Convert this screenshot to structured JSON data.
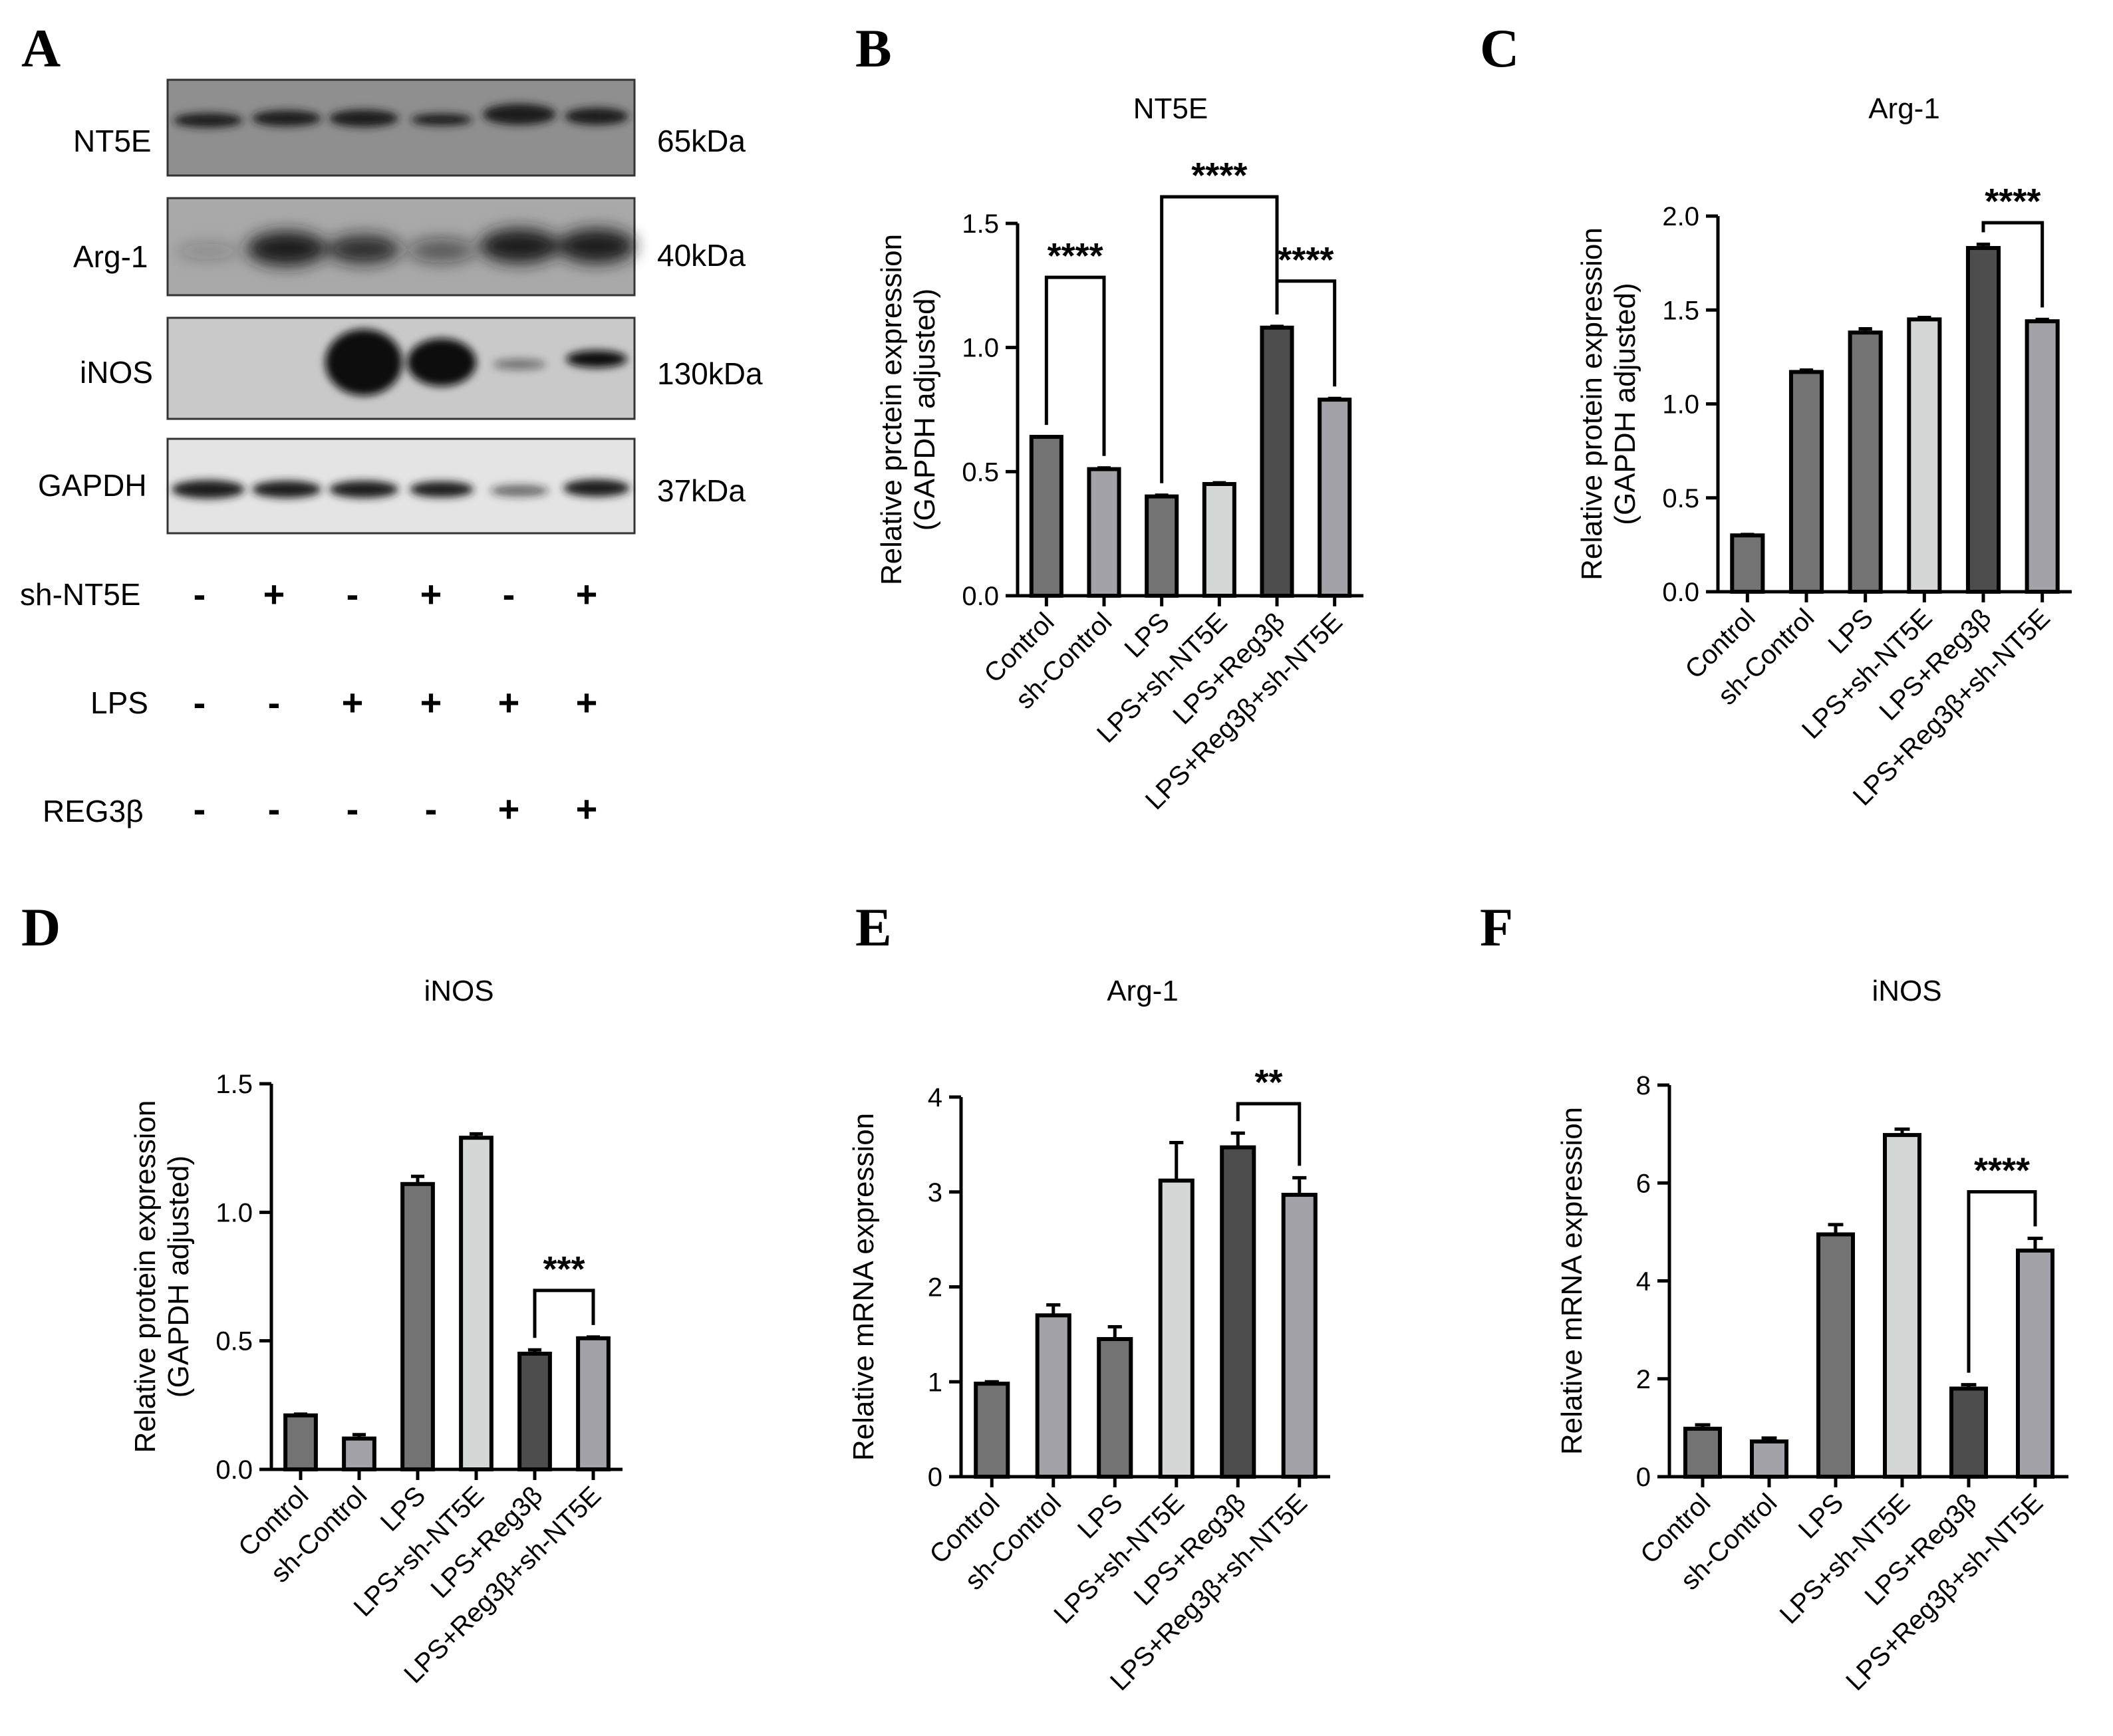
{
  "colors": {
    "dark": "#4d4d4d",
    "mid": "#737373",
    "light": "#d4d7d5",
    "grey": "#a2a2a8",
    "black": "#000000"
  },
  "western_blot": {
    "panel_letter": "A",
    "bands": [
      {
        "protein": "NT5E",
        "size": "65kDa"
      },
      {
        "protein": "Arg-1",
        "size": "40kDa"
      },
      {
        "protein": "iNOS",
        "size": "130kDa"
      },
      {
        "protein": "GAPDH",
        "size": "37kDa"
      }
    ],
    "treatments": [
      {
        "name": "sh-NT5E",
        "signs": [
          "-",
          "+",
          "-",
          "+",
          "-",
          "+"
        ]
      },
      {
        "name": "LPS",
        "signs": [
          "-",
          "-",
          "+",
          "+",
          "+",
          "+"
        ]
      },
      {
        "name": "REG3β",
        "signs": [
          "-",
          "-",
          "-",
          "-",
          "+",
          "+"
        ]
      }
    ]
  },
  "chart_data": [
    {
      "panel": "B",
      "type": "bar",
      "title": "NT5E",
      "ylabel": [
        "Relative prctein expression",
        "(GAPDH adjusted)"
      ],
      "ylim": [
        0,
        1.5
      ],
      "yticks": [
        "0.0",
        "0.5",
        "1.0",
        "1.5"
      ],
      "categories": [
        "Control",
        "sh-Control",
        "LPS",
        "LPS+sh-NT5E",
        "LPS+Reg3β",
        "LPS+Reg3β+sh-NT5E"
      ],
      "values": [
        0.64,
        0.51,
        0.4,
        0.45,
        1.08,
        0.79
      ],
      "errors": [
        0,
        0.005,
        0.005,
        0.005,
        0.005,
        0.005
      ],
      "colors": [
        "mid",
        "grey",
        "mid",
        "light",
        "dark",
        "grey"
      ],
      "significance": [
        {
          "from": 0,
          "to": 1,
          "label": "****"
        },
        {
          "from": 2,
          "to": 4,
          "label": "****"
        },
        {
          "from": 4,
          "to": 5,
          "label": "****"
        }
      ]
    },
    {
      "panel": "C",
      "type": "bar",
      "title": "Arg-1",
      "ylabel": [
        "Relative protein expression",
        "(GAPDH adjusted)"
      ],
      "ylim": [
        0,
        2.0
      ],
      "yticks": [
        "0.0",
        "0.5",
        "1.0",
        "1.5",
        "2.0"
      ],
      "categories": [
        "Control",
        "sh-Control",
        "LPS",
        "LPS+sh-NT5E",
        "LPS+Reg3β",
        "LPS+Reg3β+sh-NT5E"
      ],
      "values": [
        0.3,
        1.17,
        1.38,
        1.45,
        1.83,
        1.44
      ],
      "errors": [
        0.005,
        0.01,
        0.02,
        0.01,
        0.02,
        0.01
      ],
      "colors": [
        "mid",
        "mid",
        "mid",
        "light",
        "dark",
        "grey"
      ],
      "significance": [
        {
          "from": 4,
          "to": 5,
          "label": "****"
        }
      ]
    },
    {
      "panel": "D",
      "type": "bar",
      "title": "iNOS",
      "ylabel": [
        "Relative protein expression",
        "(GAPDH adjusted)"
      ],
      "ylim": [
        0,
        1.5
      ],
      "yticks": [
        "0.0",
        "0.5",
        "1.0",
        "1.5"
      ],
      "categories": [
        "Control",
        "sh-Control",
        "LPS",
        "LPS+sh-NT5E",
        "LPS+Reg3β",
        "LPS+Reg3β+sh-NT5E"
      ],
      "values": [
        0.21,
        0.12,
        1.11,
        1.29,
        0.45,
        0.51
      ],
      "errors": [
        0.005,
        0.015,
        0.03,
        0.015,
        0.015,
        0.005
      ],
      "colors": [
        "mid",
        "grey",
        "mid",
        "light",
        "dark",
        "grey"
      ],
      "significance": [
        {
          "from": 4,
          "to": 5,
          "label": "***"
        }
      ]
    },
    {
      "panel": "E",
      "type": "bar",
      "title": "Arg-1",
      "ylabel": [
        "Relative mRNA expression"
      ],
      "ylim": [
        0,
        4
      ],
      "yticks": [
        "0",
        "1",
        "2",
        "3",
        "4"
      ],
      "categories": [
        "Control",
        "sh-Control",
        "LPS",
        "LPS+sh-NT5E",
        "LPS+Reg3β",
        "LPS+Reg3β+sh-NT5E"
      ],
      "values": [
        0.98,
        1.7,
        1.45,
        3.12,
        3.47,
        2.97
      ],
      "errors": [
        0.02,
        0.11,
        0.13,
        0.4,
        0.15,
        0.18
      ],
      "colors": [
        "mid",
        "grey",
        "mid",
        "light",
        "dark",
        "grey"
      ],
      "significance": [
        {
          "from": 4,
          "to": 5,
          "label": "**"
        }
      ]
    },
    {
      "panel": "F",
      "type": "bar",
      "title": "iNOS",
      "ylabel": [
        "Relative mRNA expression"
      ],
      "ylim": [
        0,
        8
      ],
      "yticks": [
        "0",
        "2",
        "4",
        "6",
        "8"
      ],
      "categories": [
        "Control",
        "sh-Control",
        "LPS",
        "LPS+sh-NT5E",
        "LPS+Reg3β",
        "LPS+Reg3β+sh-NT5E"
      ],
      "values": [
        0.98,
        0.72,
        4.95,
        6.98,
        1.8,
        4.62
      ],
      "errors": [
        0.08,
        0.07,
        0.2,
        0.12,
        0.08,
        0.25
      ],
      "colors": [
        "mid",
        "grey",
        "mid",
        "light",
        "dark",
        "grey"
      ],
      "significance": [
        {
          "from": 4,
          "to": 5,
          "label": "****"
        }
      ]
    }
  ]
}
